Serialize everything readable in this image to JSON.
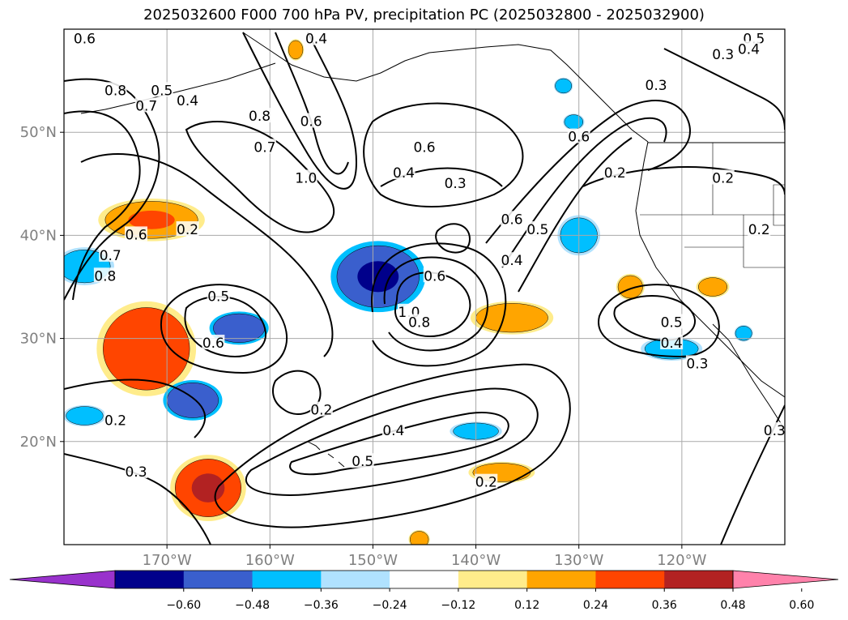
{
  "title": "2025032600 F000 700 hPa PV, precipitation PC (2025032800 - 2025032900)",
  "colors": {
    "grid": "#a9a9a9",
    "contour": "#000000",
    "coast": "#000000"
  },
  "map": {
    "lon_ticks": [
      {
        "lon": -170,
        "label": "170°W"
      },
      {
        "lon": -160,
        "label": "160°W"
      },
      {
        "lon": -150,
        "label": "150°W"
      },
      {
        "lon": -140,
        "label": "140°W"
      },
      {
        "lon": -130,
        "label": "130°W"
      },
      {
        "lon": -120,
        "label": "120°W"
      }
    ],
    "lat_ticks": [
      {
        "lat": 20,
        "label": "20°N"
      },
      {
        "lat": 30,
        "label": "30°N"
      },
      {
        "lat": 40,
        "label": "40°N"
      },
      {
        "lat": 50,
        "label": "50°N"
      }
    ],
    "lon_range": [
      -180,
      -110
    ],
    "lat_range": [
      10,
      60
    ],
    "contour_labels": [
      "0.2",
      "0.3",
      "0.4",
      "0.5",
      "0.6",
      "0.7",
      "0.8",
      "1.0"
    ]
  },
  "colorbar": {
    "colors": [
      "#9932cc",
      "#00008b",
      "#3a5fcd",
      "#00bfff",
      "#b0e2ff",
      "#ffffff",
      "#ffec8b",
      "#ffa500",
      "#ff4500",
      "#b22222",
      "#ff82ab"
    ],
    "ticks": [
      "−0.60",
      "−0.48",
      "−0.36",
      "−0.24",
      "−0.12",
      "0.12",
      "0.24",
      "0.36",
      "0.48",
      "0.60"
    ]
  },
  "shading": [
    {
      "name": "orange-blob-172w-42n",
      "color": "#ffa500",
      "halo": "#ffec8b",
      "lon": -171.5,
      "lat": 41.5,
      "rx": 4.5,
      "ry": 1.8,
      "core": "#ff4500"
    },
    {
      "name": "red-blob-172w-30n",
      "color": "#ff4500",
      "halo": "#ffec8b",
      "lon": -172,
      "lat": 29,
      "rx": 4.2,
      "ry": 4,
      "core": "#ff4500"
    },
    {
      "name": "red-blob-166w-16n",
      "color": "#ff4500",
      "halo": "#ffec8b",
      "lon": -166,
      "lat": 15.5,
      "rx": 3.2,
      "ry": 2.8,
      "core": "#b22222"
    },
    {
      "name": "orange-blob-137w-32n",
      "color": "#ffa500",
      "halo": "#ffec8b",
      "lon": -136.5,
      "lat": 32,
      "rx": 3.5,
      "ry": 1.4,
      "core": "#ffa500"
    },
    {
      "name": "orange-blob-138w-17n",
      "color": "#ffa500",
      "halo": "#ffec8b",
      "lon": -137.5,
      "lat": 17,
      "rx": 2.8,
      "ry": 0.9,
      "core": "#ffa500"
    },
    {
      "name": "orange-blob-125w-35n",
      "color": "#ffa500",
      "halo": "#ffec8b",
      "lon": -125,
      "lat": 35,
      "rx": 1.2,
      "ry": 1.1,
      "core": "#ffa500"
    },
    {
      "name": "orange-blob-117w-35n",
      "color": "#ffa500",
      "halo": "#ffec8b",
      "lon": -117,
      "lat": 35,
      "rx": 1.4,
      "ry": 0.9,
      "core": "#ffa500"
    },
    {
      "name": "orange-blob-146w-10n",
      "color": "#ffa500",
      "halo": "#ffec8b",
      "lon": -145.5,
      "lat": 10.5,
      "rx": 0.9,
      "ry": 0.8,
      "core": "#ffa500"
    },
    {
      "name": "orange-blob-158w-58n",
      "color": "#ffa500",
      "halo": "#ffec8b",
      "lon": -157.5,
      "lat": 58,
      "rx": 0.7,
      "ry": 0.9,
      "core": "#ffa500"
    },
    {
      "name": "blue-blob-149w-36n",
      "color": "#3a5fcd",
      "halo": "#00bfff",
      "lon": -149.5,
      "lat": 36,
      "rx": 4,
      "ry": 3,
      "core": "#00008b"
    },
    {
      "name": "blue-blob-163w-31n",
      "color": "#3a5fcd",
      "halo": "#00bfff",
      "lon": -163,
      "lat": 31,
      "rx": 2.5,
      "ry": 1.4,
      "core": "#3a5fcd"
    },
    {
      "name": "blue-blob-168w-24n",
      "color": "#3a5fcd",
      "halo": "#00bfff",
      "lon": -167.5,
      "lat": 24,
      "rx": 2.5,
      "ry": 1.7,
      "core": "#3a5fcd"
    },
    {
      "name": "blue-blob-178w-37n",
      "color": "#00bfff",
      "halo": "#b0e2ff",
      "lon": -178,
      "lat": 37,
      "rx": 2.5,
      "ry": 1.6,
      "core": "#00bfff"
    },
    {
      "name": "blue-blob-178w-22n",
      "color": "#00bfff",
      "halo": "#b0e2ff",
      "lon": -178,
      "lat": 22.5,
      "rx": 1.8,
      "ry": 0.9,
      "core": "#00bfff"
    },
    {
      "name": "blue-blob-130w-40n",
      "color": "#00bfff",
      "halo": "#b0e2ff",
      "lon": -130,
      "lat": 40,
      "rx": 1.8,
      "ry": 1.7,
      "core": "#00bfff"
    },
    {
      "name": "blue-blob-121w-29n",
      "color": "#00bfff",
      "halo": "#b0e2ff",
      "lon": -121,
      "lat": 29,
      "rx": 2.6,
      "ry": 1,
      "core": "#00bfff"
    },
    {
      "name": "blue-blob-140w-21n",
      "color": "#00bfff",
      "halo": "#b0e2ff",
      "lon": -140,
      "lat": 21,
      "rx": 2.2,
      "ry": 0.8,
      "core": "#00bfff"
    },
    {
      "name": "blue-blob-130w-51n",
      "color": "#00bfff",
      "halo": "#b0e2ff",
      "lon": -130.5,
      "lat": 51,
      "rx": 0.9,
      "ry": 0.7,
      "core": "#00bfff"
    },
    {
      "name": "blue-blob-131w-55n",
      "color": "#00bfff",
      "halo": "#b0e2ff",
      "lon": -131.5,
      "lat": 54.5,
      "rx": 0.8,
      "ry": 0.7,
      "core": "#00bfff"
    },
    {
      "name": "blue-blob-114w-30n",
      "color": "#00bfff",
      "halo": "#b0e2ff",
      "lon": -114,
      "lat": 30.5,
      "rx": 0.8,
      "ry": 0.7,
      "core": "#00bfff"
    }
  ],
  "labels": [
    {
      "t": "0.6",
      "lon": -178,
      "lat": 59
    },
    {
      "t": "0.4",
      "lon": -155.5,
      "lat": 59
    },
    {
      "t": "0.5",
      "lon": -113,
      "lat": 59
    },
    {
      "t": "0.4",
      "lon": -113.5,
      "lat": 58
    },
    {
      "t": "0.3",
      "lon": -116,
      "lat": 57.5
    },
    {
      "t": "0.3",
      "lon": -122.5,
      "lat": 54.5
    },
    {
      "t": "0.8",
      "lon": -175,
      "lat": 54
    },
    {
      "t": "0.5",
      "lon": -170.5,
      "lat": 54
    },
    {
      "t": "0.7",
      "lon": -172,
      "lat": 52.5
    },
    {
      "t": "0.4",
      "lon": -168,
      "lat": 53
    },
    {
      "t": "0.6",
      "lon": -156,
      "lat": 51
    },
    {
      "t": "0.8",
      "lon": -161,
      "lat": 51.5
    },
    {
      "t": "0.7",
      "lon": -160.5,
      "lat": 48.5
    },
    {
      "t": "1.0",
      "lon": -156.5,
      "lat": 45.5
    },
    {
      "t": "0.6",
      "lon": -145,
      "lat": 48.5
    },
    {
      "t": "0.4",
      "lon": -147,
      "lat": 46
    },
    {
      "t": "0.3",
      "lon": -142,
      "lat": 45
    },
    {
      "t": "0.6",
      "lon": -130,
      "lat": 49.5
    },
    {
      "t": "0.2",
      "lon": -126.5,
      "lat": 46
    },
    {
      "t": "0.2",
      "lon": -116,
      "lat": 45.5
    },
    {
      "t": "0.6",
      "lon": -136.5,
      "lat": 41.5
    },
    {
      "t": "0.5",
      "lon": -134,
      "lat": 40.5
    },
    {
      "t": "0.4",
      "lon": -136.5,
      "lat": 37.5
    },
    {
      "t": "0.2",
      "lon": -112.5,
      "lat": 40.5
    },
    {
      "t": "0.2",
      "lon": -168,
      "lat": 40.5
    },
    {
      "t": "0.6",
      "lon": -173,
      "lat": 40
    },
    {
      "t": "0.7",
      "lon": -175.5,
      "lat": 38
    },
    {
      "t": "0.8",
      "lon": -176,
      "lat": 36
    },
    {
      "t": "0.6",
      "lon": -144,
      "lat": 36
    },
    {
      "t": "1.0",
      "lon": -146.5,
      "lat": 32.5
    },
    {
      "t": "0.8",
      "lon": -145.5,
      "lat": 31.5
    },
    {
      "t": "0.5",
      "lon": -165,
      "lat": 34
    },
    {
      "t": "0.6",
      "lon": -165.5,
      "lat": 29.5
    },
    {
      "t": "0.5",
      "lon": -121,
      "lat": 31.5
    },
    {
      "t": "0.4",
      "lon": -121,
      "lat": 29.5
    },
    {
      "t": "0.3",
      "lon": -118.5,
      "lat": 27.5
    },
    {
      "t": "0.2",
      "lon": -155,
      "lat": 23
    },
    {
      "t": "0.2",
      "lon": -175,
      "lat": 22
    },
    {
      "t": "0.4",
      "lon": -148,
      "lat": 21
    },
    {
      "t": "0.3",
      "lon": -111,
      "lat": 21
    },
    {
      "t": "0.5",
      "lon": -151,
      "lat": 18
    },
    {
      "t": "0.3",
      "lon": -173,
      "lat": 17
    },
    {
      "t": "0.2",
      "lon": -139,
      "lat": 16
    }
  ]
}
